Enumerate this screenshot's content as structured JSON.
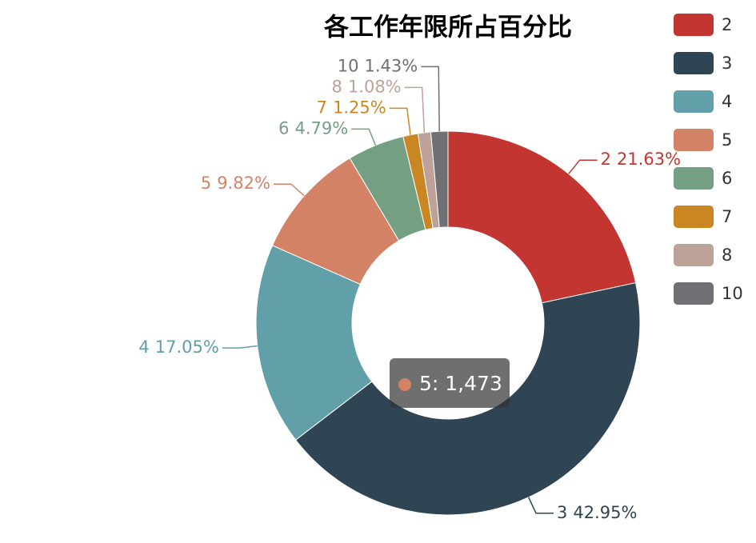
{
  "chart_data": {
    "type": "pie",
    "title": "各工作年限所占百分比",
    "categories": [
      "2",
      "3",
      "4",
      "5",
      "6",
      "7",
      "8",
      "10"
    ],
    "values": [
      21.63,
      42.95,
      17.05,
      9.82,
      4.79,
      1.25,
      1.08,
      1.43
    ],
    "value_labels": [
      "21.63%",
      "42.95%",
      "17.05%",
      "9.82%",
      "4.79%",
      "1.25%",
      "1.08%",
      "1.43%"
    ],
    "colors": [
      "#c23531",
      "#2f4554",
      "#61a0a8",
      "#d48265",
      "#749f83",
      "#ca8622",
      "#bda29a",
      "#6e7074"
    ],
    "legend": "top-right",
    "tooltip": {
      "category": "5",
      "value": 1473,
      "label": "5: 1,473"
    }
  }
}
